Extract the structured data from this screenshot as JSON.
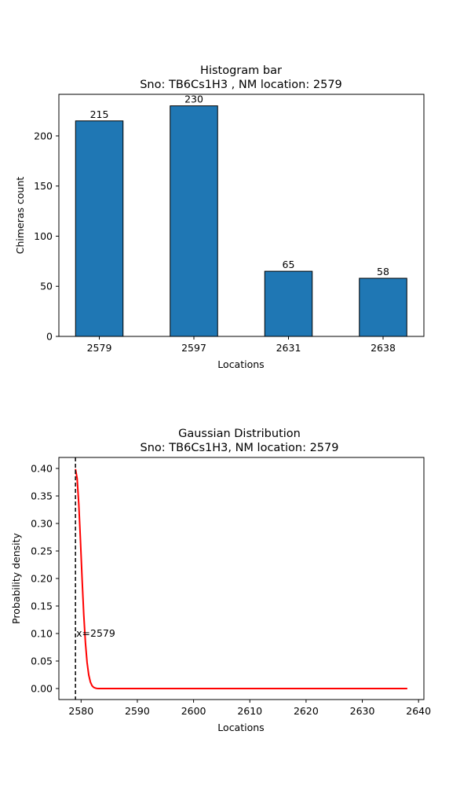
{
  "chart_data": [
    {
      "type": "bar",
      "title": "Histogram bar",
      "subtitle": "Sno: TB6Cs1H3 , NM location: 2579",
      "xlabel": "Locations",
      "ylabel": "Chimeras count",
      "categories": [
        "2579",
        "2597",
        "2631",
        "2638"
      ],
      "values": [
        215,
        230,
        65,
        58
      ],
      "ylim": [
        0,
        241.5
      ],
      "yticks": [
        0,
        50,
        100,
        150,
        200
      ],
      "bar_color": "#1f77b4",
      "edge_color": "#000000",
      "grid": false,
      "legend": "none"
    },
    {
      "type": "line",
      "title": "Gaussian Distribution",
      "subtitle": "Sno: TB6Cs1H3, NM location: 2579",
      "xlabel": "Locations",
      "ylabel": "Probability density",
      "xlim": [
        2576.05,
        2640.95
      ],
      "ylim": [
        -0.02,
        0.42
      ],
      "xticks": [
        2580,
        2590,
        2600,
        2610,
        2620,
        2630,
        2640
      ],
      "yticks": [
        0.0,
        0.05,
        0.1,
        0.15,
        0.2,
        0.25,
        0.3,
        0.35,
        0.4
      ],
      "ytick_labels": [
        "0.00",
        "0.05",
        "0.10",
        "0.15",
        "0.20",
        "0.25",
        "0.30",
        "0.35",
        "0.40"
      ],
      "series": [
        {
          "color": "#ff0000",
          "mean": 2579,
          "std": 1,
          "x_range": [
            2579,
            2638
          ],
          "points": [
            [
              2579,
              0.3989
            ],
            [
              2579.6,
              0.333
            ],
            [
              2580.2,
              0.1942
            ],
            [
              2580.8,
              0.079
            ],
            [
              2581.4,
              0.0224
            ],
            [
              2582.0,
              0.0044
            ],
            [
              2582.6,
              0.0006
            ],
            [
              2583.2,
              0.0001
            ],
            [
              2584,
              0.0
            ],
            [
              2590,
              0.0
            ],
            [
              2600,
              0.0
            ],
            [
              2610,
              0.0
            ],
            [
              2620,
              0.0
            ],
            [
              2630,
              0.0
            ],
            [
              2638,
              0.0
            ]
          ]
        }
      ],
      "vline": {
        "x": 2579,
        "color": "#000000",
        "style": "dashed",
        "label": "x=2579"
      },
      "grid": false,
      "legend": "none"
    }
  ]
}
